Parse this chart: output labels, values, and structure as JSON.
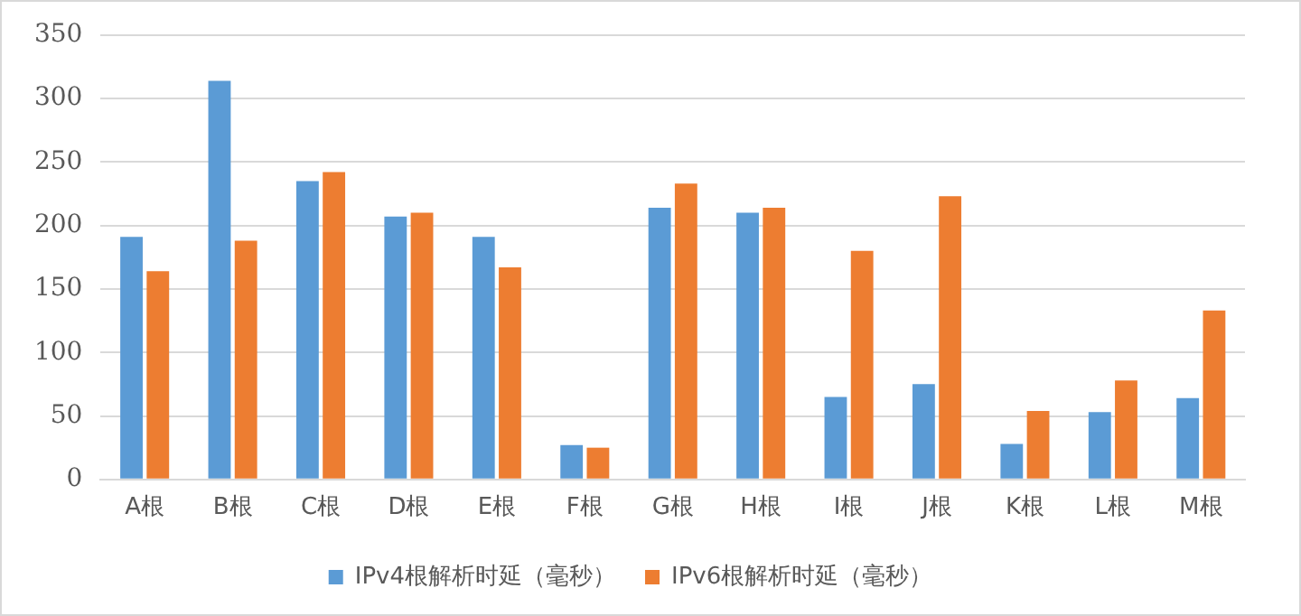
{
  "chart_data": {
    "type": "bar",
    "categories": [
      "A根",
      "B根",
      "C根",
      "D根",
      "E根",
      "F根",
      "G根",
      "H根",
      "I根",
      "J根",
      "K根",
      "L根",
      "M根"
    ],
    "series": [
      {
        "name": "IPv4根解析时延（毫秒）",
        "color": "#5b9bd5",
        "values": [
          191,
          314,
          235,
          207,
          191,
          27,
          214,
          210,
          65,
          75,
          28,
          53,
          64
        ]
      },
      {
        "name": "IPv6根解析时延（毫秒）",
        "color": "#ed7d31",
        "values": [
          164,
          188,
          242,
          210,
          167,
          25,
          233,
          214,
          180,
          223,
          54,
          78,
          133
        ]
      }
    ],
    "ylim": [
      0,
      350
    ],
    "yticks": [
      0,
      50,
      100,
      150,
      200,
      250,
      300,
      350
    ],
    "grid": "y",
    "legend": "bottom"
  }
}
